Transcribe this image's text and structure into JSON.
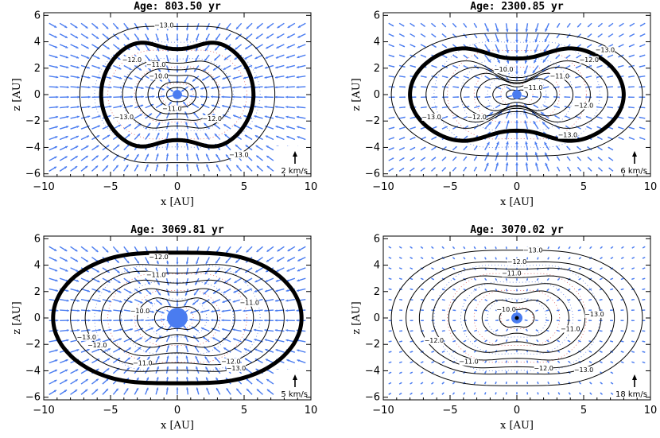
{
  "figure": {
    "xlabel": "x [AU]",
    "ylabel": "z [AU]",
    "xticks": [
      "−10",
      "−5",
      "0",
      "5",
      "10"
    ],
    "yticks": [
      "−6",
      "−4",
      "−2",
      "0",
      "2",
      "4",
      "6"
    ]
  },
  "chart_data": [
    {
      "type": "contour",
      "title": "Age: 803.50 yr",
      "xlabel": "x [AU]",
      "ylabel": "z [AU]",
      "xlim": [
        -10,
        10
      ],
      "ylim": [
        -6.2,
        6.2
      ],
      "contour_labels": [
        "−13.0",
        "−12.0",
        "−11.0",
        "−10.0",
        "−13.0",
        "−12.0",
        "−11.0",
        "−13.0"
      ],
      "velocity_scale_label": "2 km/s",
      "colors": {
        "vectors": "#4a7cf0",
        "contours": "#000000",
        "dotted_red": "#e06060",
        "dotted_blue": "#6080e0"
      }
    },
    {
      "type": "contour",
      "title": "Age: 2300.85 yr",
      "xlabel": "x [AU]",
      "ylabel": "z [AU]",
      "xlim": [
        -10,
        10
      ],
      "ylim": [
        -6.2,
        6.2
      ],
      "contour_labels": [
        "−13.0",
        "−12.0",
        "−11.0",
        "−10.0",
        "−11.0",
        "−12.0",
        "−13.0",
        "−12.0",
        "−13.0"
      ],
      "velocity_scale_label": "6 km/s",
      "colors": {
        "vectors": "#4a7cf0",
        "contours": "#000000",
        "dotted_red": "#e06060",
        "dotted_blue": "#6080e0"
      }
    },
    {
      "type": "contour",
      "title": "Age: 3069.81 yr",
      "xlabel": "x [AU]",
      "ylabel": "z [AU]",
      "xlim": [
        -10,
        10
      ],
      "ylim": [
        -6.2,
        6.2
      ],
      "contour_labels": [
        "−12.0",
        "−11.0",
        "−10.0",
        "−11.0",
        "−13.0",
        "−12.0",
        "−11.0",
        "−12.0",
        "−13.0"
      ],
      "velocity_scale_label": "5 km/s",
      "colors": {
        "vectors": "#4a7cf0",
        "contours": "#000000",
        "dotted_red": "#e06060",
        "dotted_blue": "#6080e0"
      }
    },
    {
      "type": "contour",
      "title": "Age: 3070.02 yr",
      "xlabel": "x [AU]",
      "ylabel": "z [AU]",
      "xlim": [
        -10,
        10
      ],
      "ylim": [
        -6.2,
        6.2
      ],
      "contour_labels": [
        "−13.0",
        "−12.0",
        "−11.0",
        "−10.0",
        "−13.0",
        "−12.0",
        "−11.0",
        "−12.0",
        "−13.0",
        "−11.0"
      ],
      "velocity_scale_label": "18 km/s",
      "colors": {
        "vectors": "#4a7cf0",
        "contours": "#000000",
        "dotted_red": "#e06060",
        "dotted_blue": "#6080e0"
      }
    }
  ]
}
